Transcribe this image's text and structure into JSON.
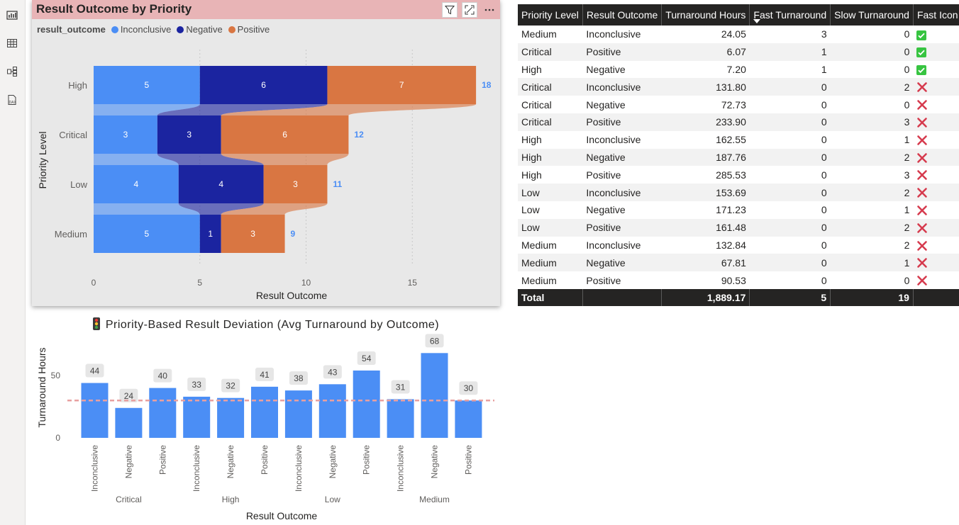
{
  "visual1": {
    "title": "Result Outcome by Priority",
    "legend_title": "result_outcome",
    "y_axis_title": "Priority Level",
    "x_axis_title": "Result Outcome",
    "colors": {
      "Inconclusive": "#4b8ef5",
      "Negative": "#1b24a0",
      "Positive": "#d97642",
      "total_label": "#4b8ef5"
    }
  },
  "chart_data": [
    {
      "type": "bar",
      "orientation": "horizontal-stacked",
      "title": "Result Outcome by Priority",
      "xlabel": "Result Outcome",
      "ylabel": "Priority Level",
      "categories": [
        "High",
        "Critical",
        "Low",
        "Medium"
      ],
      "series": [
        {
          "name": "Inconclusive",
          "values": [
            5,
            3,
            4,
            5
          ]
        },
        {
          "name": "Negative",
          "values": [
            6,
            3,
            4,
            1
          ]
        },
        {
          "name": "Positive",
          "values": [
            7,
            6,
            3,
            3
          ]
        }
      ],
      "totals": [
        18,
        12,
        11,
        9
      ],
      "xlim": [
        0,
        18
      ],
      "xticks": [
        "0",
        "5",
        "10",
        "15"
      ],
      "grid": true,
      "legend": "top-left"
    },
    {
      "type": "bar",
      "title": "Priority-Based Result Deviation (Avg Turnaround by Outcome)",
      "xlabel": "Result Outcome",
      "ylabel": "Turnaround Hours",
      "groups": [
        "Critical",
        "High",
        "Low",
        "Medium"
      ],
      "categories": [
        "Inconclusive",
        "Negative",
        "Positive",
        "Inconclusive",
        "Negative",
        "Positive",
        "Inconclusive",
        "Negative",
        "Positive",
        "Inconclusive",
        "Negative",
        "Positive"
      ],
      "values": [
        44,
        24,
        40,
        33,
        32,
        41,
        38,
        43,
        54,
        31,
        68,
        30
      ],
      "reference_line": 30,
      "ylim": [
        0,
        70
      ],
      "yticks": [
        "0",
        "50"
      ],
      "bar_color": "#4b8ef5",
      "reference_color": "#e8a0a0"
    }
  ],
  "visual2": {
    "title": "Priority-Based Result Deviation (Avg Turnaround by Outcome)",
    "y_axis_title": "Turnaround Hours",
    "x_axis_title": "Result Outcome",
    "title_icon": "traffic-light-icon"
  },
  "table": {
    "headers": [
      "Priority Level",
      "Result Outcome",
      "Turnaround Hours",
      "Fast Turnaround",
      "Slow Turnaround",
      "Fast Icon"
    ],
    "rows": [
      {
        "priority": "Medium",
        "outcome": "Inconclusive",
        "hours": "24.05",
        "fast": "3",
        "slow": "0",
        "icon": "check"
      },
      {
        "priority": "Critical",
        "outcome": "Positive",
        "hours": "6.07",
        "fast": "1",
        "slow": "0",
        "icon": "check"
      },
      {
        "priority": "High",
        "outcome": "Negative",
        "hours": "7.20",
        "fast": "1",
        "slow": "0",
        "icon": "check"
      },
      {
        "priority": "Critical",
        "outcome": "Inconclusive",
        "hours": "131.80",
        "fast": "0",
        "slow": "2",
        "icon": "cross"
      },
      {
        "priority": "Critical",
        "outcome": "Negative",
        "hours": "72.73",
        "fast": "0",
        "slow": "0",
        "icon": "cross"
      },
      {
        "priority": "Critical",
        "outcome": "Positive",
        "hours": "233.90",
        "fast": "0",
        "slow": "3",
        "icon": "cross"
      },
      {
        "priority": "High",
        "outcome": "Inconclusive",
        "hours": "162.55",
        "fast": "0",
        "slow": "1",
        "icon": "cross"
      },
      {
        "priority": "High",
        "outcome": "Negative",
        "hours": "187.76",
        "fast": "0",
        "slow": "2",
        "icon": "cross"
      },
      {
        "priority": "High",
        "outcome": "Positive",
        "hours": "285.53",
        "fast": "0",
        "slow": "3",
        "icon": "cross"
      },
      {
        "priority": "Low",
        "outcome": "Inconclusive",
        "hours": "153.69",
        "fast": "0",
        "slow": "2",
        "icon": "cross"
      },
      {
        "priority": "Low",
        "outcome": "Negative",
        "hours": "171.23",
        "fast": "0",
        "slow": "1",
        "icon": "cross"
      },
      {
        "priority": "Low",
        "outcome": "Positive",
        "hours": "161.48",
        "fast": "0",
        "slow": "2",
        "icon": "cross"
      },
      {
        "priority": "Medium",
        "outcome": "Inconclusive",
        "hours": "132.84",
        "fast": "0",
        "slow": "2",
        "icon": "cross"
      },
      {
        "priority": "Medium",
        "outcome": "Negative",
        "hours": "67.81",
        "fast": "0",
        "slow": "1",
        "icon": "cross"
      },
      {
        "priority": "Medium",
        "outcome": "Positive",
        "hours": "90.53",
        "fast": "0",
        "slow": "0",
        "icon": "cross"
      }
    ],
    "total": {
      "label": "Total",
      "hours": "1,889.17",
      "fast": "5",
      "slow": "19"
    },
    "sorted_column": "Fast Turnaround"
  },
  "rail_icons": [
    "report-view-icon",
    "table-view-icon",
    "model-view-icon",
    "dax-query-icon"
  ]
}
